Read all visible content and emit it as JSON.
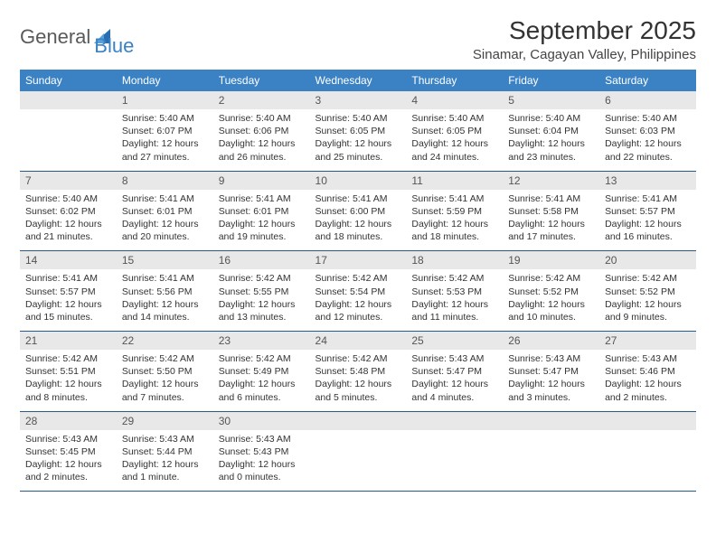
{
  "logo": {
    "text1": "General",
    "text2": "Blue",
    "icon_color": "#2a6db0"
  },
  "header": {
    "month_title": "September 2025",
    "location": "Sinamar, Cagayan Valley, Philippines"
  },
  "colors": {
    "header_bg": "#3b82c4",
    "header_text": "#ffffff",
    "daynum_bg": "#e8e8e8",
    "row_divider": "#2a5a8a",
    "body_text": "#333333"
  },
  "day_names": [
    "Sunday",
    "Monday",
    "Tuesday",
    "Wednesday",
    "Thursday",
    "Friday",
    "Saturday"
  ],
  "weeks": [
    [
      {
        "n": "",
        "sr": "",
        "ss": "",
        "dl": ""
      },
      {
        "n": "1",
        "sr": "Sunrise: 5:40 AM",
        "ss": "Sunset: 6:07 PM",
        "dl": "Daylight: 12 hours and 27 minutes."
      },
      {
        "n": "2",
        "sr": "Sunrise: 5:40 AM",
        "ss": "Sunset: 6:06 PM",
        "dl": "Daylight: 12 hours and 26 minutes."
      },
      {
        "n": "3",
        "sr": "Sunrise: 5:40 AM",
        "ss": "Sunset: 6:05 PM",
        "dl": "Daylight: 12 hours and 25 minutes."
      },
      {
        "n": "4",
        "sr": "Sunrise: 5:40 AM",
        "ss": "Sunset: 6:05 PM",
        "dl": "Daylight: 12 hours and 24 minutes."
      },
      {
        "n": "5",
        "sr": "Sunrise: 5:40 AM",
        "ss": "Sunset: 6:04 PM",
        "dl": "Daylight: 12 hours and 23 minutes."
      },
      {
        "n": "6",
        "sr": "Sunrise: 5:40 AM",
        "ss": "Sunset: 6:03 PM",
        "dl": "Daylight: 12 hours and 22 minutes."
      }
    ],
    [
      {
        "n": "7",
        "sr": "Sunrise: 5:40 AM",
        "ss": "Sunset: 6:02 PM",
        "dl": "Daylight: 12 hours and 21 minutes."
      },
      {
        "n": "8",
        "sr": "Sunrise: 5:41 AM",
        "ss": "Sunset: 6:01 PM",
        "dl": "Daylight: 12 hours and 20 minutes."
      },
      {
        "n": "9",
        "sr": "Sunrise: 5:41 AM",
        "ss": "Sunset: 6:01 PM",
        "dl": "Daylight: 12 hours and 19 minutes."
      },
      {
        "n": "10",
        "sr": "Sunrise: 5:41 AM",
        "ss": "Sunset: 6:00 PM",
        "dl": "Daylight: 12 hours and 18 minutes."
      },
      {
        "n": "11",
        "sr": "Sunrise: 5:41 AM",
        "ss": "Sunset: 5:59 PM",
        "dl": "Daylight: 12 hours and 18 minutes."
      },
      {
        "n": "12",
        "sr": "Sunrise: 5:41 AM",
        "ss": "Sunset: 5:58 PM",
        "dl": "Daylight: 12 hours and 17 minutes."
      },
      {
        "n": "13",
        "sr": "Sunrise: 5:41 AM",
        "ss": "Sunset: 5:57 PM",
        "dl": "Daylight: 12 hours and 16 minutes."
      }
    ],
    [
      {
        "n": "14",
        "sr": "Sunrise: 5:41 AM",
        "ss": "Sunset: 5:57 PM",
        "dl": "Daylight: 12 hours and 15 minutes."
      },
      {
        "n": "15",
        "sr": "Sunrise: 5:41 AM",
        "ss": "Sunset: 5:56 PM",
        "dl": "Daylight: 12 hours and 14 minutes."
      },
      {
        "n": "16",
        "sr": "Sunrise: 5:42 AM",
        "ss": "Sunset: 5:55 PM",
        "dl": "Daylight: 12 hours and 13 minutes."
      },
      {
        "n": "17",
        "sr": "Sunrise: 5:42 AM",
        "ss": "Sunset: 5:54 PM",
        "dl": "Daylight: 12 hours and 12 minutes."
      },
      {
        "n": "18",
        "sr": "Sunrise: 5:42 AM",
        "ss": "Sunset: 5:53 PM",
        "dl": "Daylight: 12 hours and 11 minutes."
      },
      {
        "n": "19",
        "sr": "Sunrise: 5:42 AM",
        "ss": "Sunset: 5:52 PM",
        "dl": "Daylight: 12 hours and 10 minutes."
      },
      {
        "n": "20",
        "sr": "Sunrise: 5:42 AM",
        "ss": "Sunset: 5:52 PM",
        "dl": "Daylight: 12 hours and 9 minutes."
      }
    ],
    [
      {
        "n": "21",
        "sr": "Sunrise: 5:42 AM",
        "ss": "Sunset: 5:51 PM",
        "dl": "Daylight: 12 hours and 8 minutes."
      },
      {
        "n": "22",
        "sr": "Sunrise: 5:42 AM",
        "ss": "Sunset: 5:50 PM",
        "dl": "Daylight: 12 hours and 7 minutes."
      },
      {
        "n": "23",
        "sr": "Sunrise: 5:42 AM",
        "ss": "Sunset: 5:49 PM",
        "dl": "Daylight: 12 hours and 6 minutes."
      },
      {
        "n": "24",
        "sr": "Sunrise: 5:42 AM",
        "ss": "Sunset: 5:48 PM",
        "dl": "Daylight: 12 hours and 5 minutes."
      },
      {
        "n": "25",
        "sr": "Sunrise: 5:43 AM",
        "ss": "Sunset: 5:47 PM",
        "dl": "Daylight: 12 hours and 4 minutes."
      },
      {
        "n": "26",
        "sr": "Sunrise: 5:43 AM",
        "ss": "Sunset: 5:47 PM",
        "dl": "Daylight: 12 hours and 3 minutes."
      },
      {
        "n": "27",
        "sr": "Sunrise: 5:43 AM",
        "ss": "Sunset: 5:46 PM",
        "dl": "Daylight: 12 hours and 2 minutes."
      }
    ],
    [
      {
        "n": "28",
        "sr": "Sunrise: 5:43 AM",
        "ss": "Sunset: 5:45 PM",
        "dl": "Daylight: 12 hours and 2 minutes."
      },
      {
        "n": "29",
        "sr": "Sunrise: 5:43 AM",
        "ss": "Sunset: 5:44 PM",
        "dl": "Daylight: 12 hours and 1 minute."
      },
      {
        "n": "30",
        "sr": "Sunrise: 5:43 AM",
        "ss": "Sunset: 5:43 PM",
        "dl": "Daylight: 12 hours and 0 minutes."
      },
      {
        "n": "",
        "sr": "",
        "ss": "",
        "dl": ""
      },
      {
        "n": "",
        "sr": "",
        "ss": "",
        "dl": ""
      },
      {
        "n": "",
        "sr": "",
        "ss": "",
        "dl": ""
      },
      {
        "n": "",
        "sr": "",
        "ss": "",
        "dl": ""
      }
    ]
  ]
}
